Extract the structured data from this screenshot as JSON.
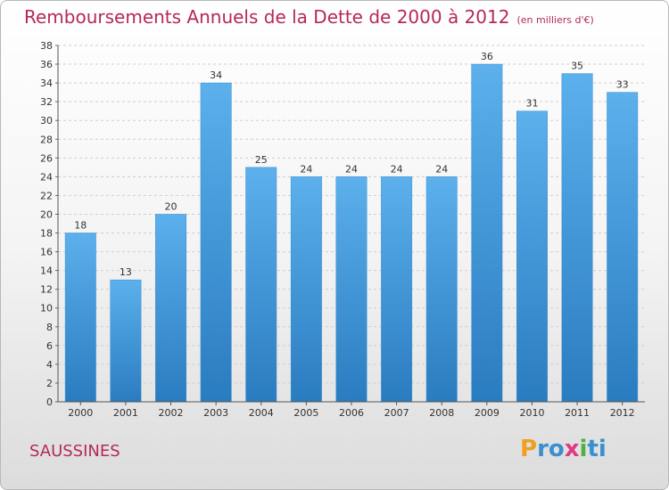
{
  "chart_data": {
    "type": "bar",
    "title": "Remboursements Annuels de la Dette de 2000 à 2012",
    "subtitle": "(en milliers d'€)",
    "categories": [
      "2000",
      "2001",
      "2002",
      "2003",
      "2004",
      "2005",
      "2006",
      "2007",
      "2008",
      "2009",
      "2010",
      "2011",
      "2012"
    ],
    "values": [
      18,
      13,
      20,
      34,
      25,
      24,
      24,
      24,
      24,
      36,
      31,
      35,
      33
    ],
    "ylim": [
      0,
      38
    ],
    "yticks": [
      0,
      2,
      4,
      6,
      8,
      10,
      12,
      14,
      16,
      18,
      20,
      22,
      24,
      26,
      28,
      30,
      32,
      34,
      36,
      38
    ],
    "grid": true,
    "bar_color": "#4a9ee0"
  },
  "commune": "SAUSSINES",
  "logo": {
    "letters": [
      "P",
      "r",
      "o",
      "x",
      "i",
      "t",
      "i"
    ],
    "colors": [
      "#f0a020",
      "#3a8fd0",
      "#3a8fd0",
      "#e03a80",
      "#50b040",
      "#3a8fd0",
      "#3a8fd0"
    ]
  }
}
